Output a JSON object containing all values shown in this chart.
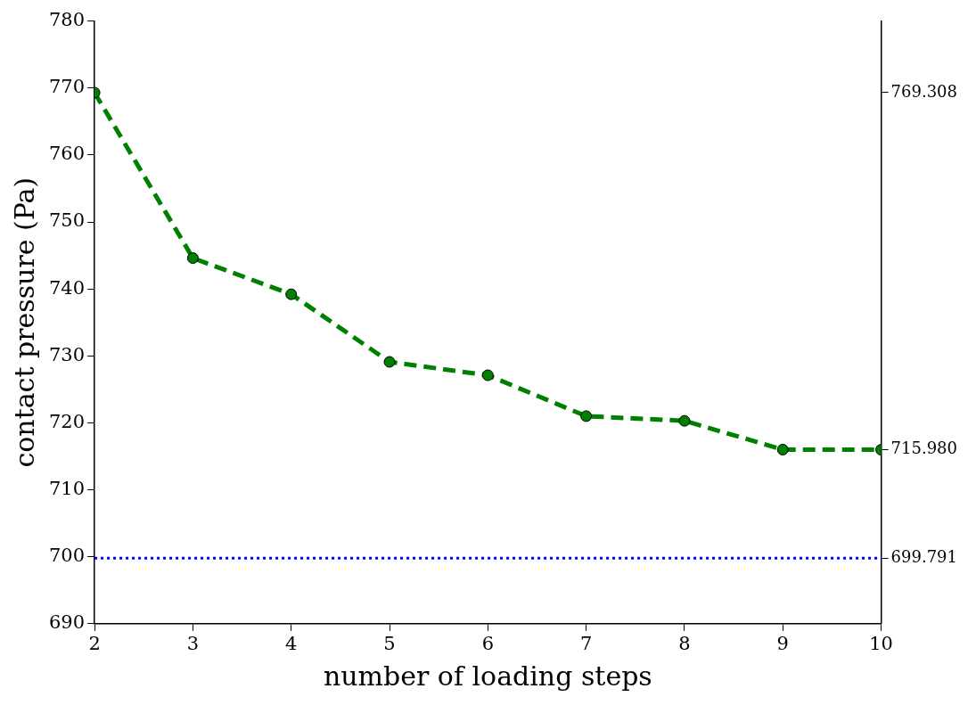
{
  "chart_data": {
    "type": "line",
    "xlabel": "number of loading steps",
    "ylabel": "contact pressure (Pa)",
    "x": [
      2,
      3,
      4,
      5,
      6,
      7,
      8,
      9,
      10
    ],
    "series": [
      {
        "color": "#008000",
        "values": [
          769.308,
          744.6,
          739.2,
          729.1,
          727.1,
          721.0,
          720.3,
          716.0,
          715.98
        ]
      }
    ],
    "marker": "circle",
    "line_style": "dashed",
    "xlim": [
      2,
      10
    ],
    "xticks": [
      2,
      3,
      4,
      5,
      6,
      7,
      8,
      9,
      10
    ],
    "ylim": [
      690,
      780
    ],
    "yticks": [
      690,
      700,
      710,
      720,
      730,
      740,
      750,
      760,
      770,
      780
    ],
    "y2lim": [
      690,
      780
    ],
    "y2ticks": [
      {
        "value": 769.308,
        "label": "769.308"
      },
      {
        "value": 715.98,
        "label": "715.980"
      },
      {
        "value": 699.791,
        "label": "699.791"
      }
    ],
    "ref_lines": [
      {
        "axis": "y",
        "value": 699.791,
        "color": "#0000ff",
        "line_style": "dotted"
      }
    ]
  }
}
